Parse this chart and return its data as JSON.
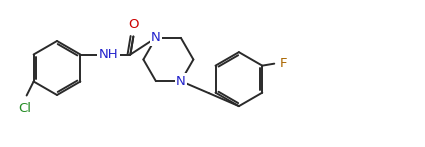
{
  "bg_color": "#ffffff",
  "line_color": "#2a2a2a",
  "atom_colors": {
    "O": "#cc0000",
    "N": "#2222cc",
    "Cl": "#228B22",
    "F": "#aa6600"
  },
  "font_size": 9.5,
  "lw": 1.4
}
